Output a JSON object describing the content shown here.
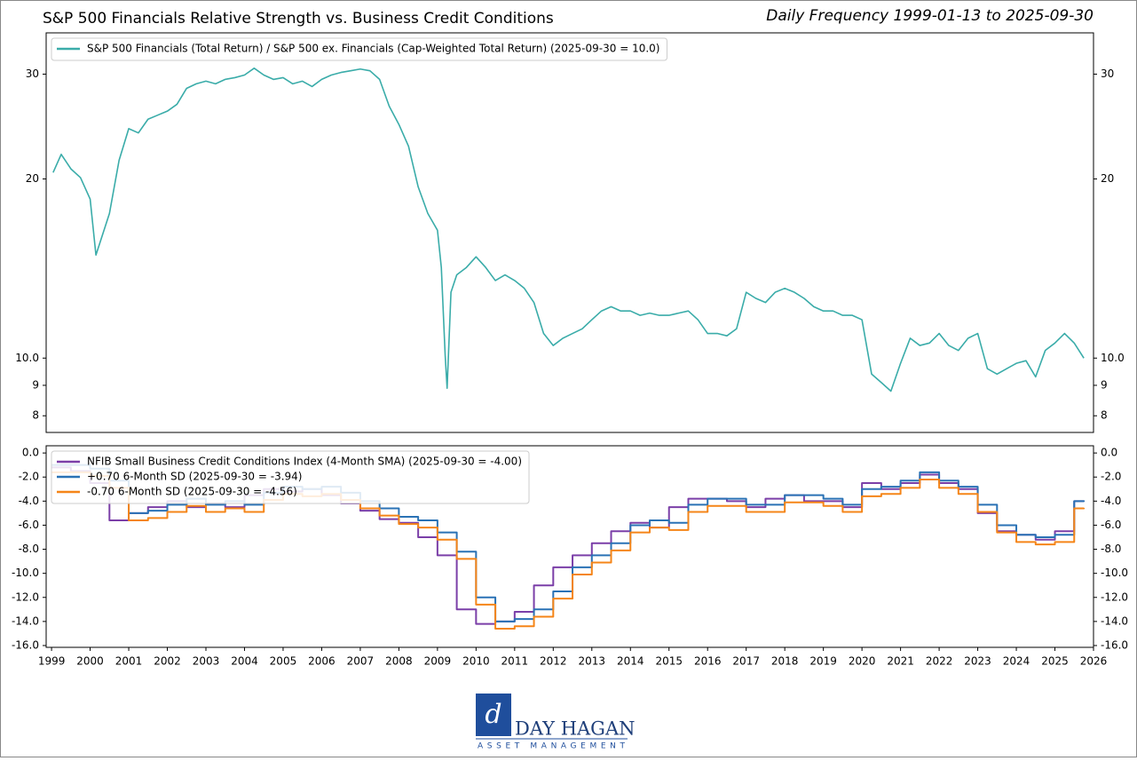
{
  "chart_data": [
    {
      "type": "line",
      "title": "S&P 500 Financials Relative Strength vs. Business Credit Conditions",
      "subtitle": "Daily Frequency 1999-01-13 to 2025-09-30",
      "log_y": true,
      "legend": "upper left",
      "xlim": [
        1998.86,
        2026.0
      ],
      "ylim": [
        7.5,
        35.2
      ],
      "yticks": [
        8,
        9,
        {
          "value": 10,
          "label": "10.0"
        },
        20,
        30
      ],
      "x": [
        1999.04,
        1999.25,
        1999.5,
        1999.75,
        2000.0,
        2000.15,
        2000.5,
        2000.75,
        2001.0,
        2001.25,
        2001.5,
        2001.75,
        2002.0,
        2002.25,
        2002.5,
        2002.75,
        2003.0,
        2003.25,
        2003.5,
        2003.75,
        2004.0,
        2004.25,
        2004.5,
        2004.75,
        2005.0,
        2005.25,
        2005.5,
        2005.75,
        2006.0,
        2006.25,
        2006.5,
        2006.75,
        2007.0,
        2007.25,
        2007.5,
        2007.75,
        2008.0,
        2008.25,
        2008.5,
        2008.75,
        2009.0,
        2009.1,
        2009.2,
        2009.25,
        2009.35,
        2009.5,
        2009.75,
        2010.0,
        2010.25,
        2010.5,
        2010.75,
        2011.0,
        2011.25,
        2011.5,
        2011.75,
        2012.0,
        2012.25,
        2012.5,
        2012.75,
        2013.0,
        2013.25,
        2013.5,
        2013.75,
        2014.0,
        2014.25,
        2014.5,
        2014.75,
        2015.0,
        2015.25,
        2015.5,
        2015.75,
        2016.0,
        2016.25,
        2016.5,
        2016.75,
        2017.0,
        2017.25,
        2017.5,
        2017.75,
        2018.0,
        2018.25,
        2018.5,
        2018.75,
        2019.0,
        2019.25,
        2019.5,
        2019.75,
        2020.0,
        2020.25,
        2020.5,
        2020.75,
        2021.0,
        2021.25,
        2021.5,
        2021.75,
        2022.0,
        2022.25,
        2022.5,
        2022.75,
        2023.0,
        2023.25,
        2023.5,
        2023.75,
        2024.0,
        2024.25,
        2024.5,
        2024.75,
        2025.0,
        2025.25,
        2025.5,
        2025.75
      ],
      "series": [
        {
          "name": "S&P 500 Financials (Total Return) / S&P 500 ex. Financials (Cap-Weighted Total Return) (2025-09-30 = 10.0)",
          "color": "#3aaca9",
          "values": [
            20.5,
            22.0,
            20.8,
            20.1,
            18.5,
            14.9,
            17.5,
            21.5,
            24.3,
            23.9,
            25.2,
            25.6,
            26.0,
            26.7,
            28.4,
            28.9,
            29.2,
            28.9,
            29.4,
            29.6,
            29.9,
            30.7,
            29.9,
            29.4,
            29.6,
            28.9,
            29.2,
            28.6,
            29.4,
            29.9,
            30.2,
            30.4,
            30.6,
            30.4,
            29.4,
            26.5,
            24.7,
            22.7,
            19.4,
            17.5,
            16.4,
            14.2,
            10.1,
            8.9,
            12.9,
            13.8,
            14.2,
            14.8,
            14.2,
            13.5,
            13.8,
            13.5,
            13.1,
            12.4,
            11.0,
            10.5,
            10.8,
            11.0,
            11.2,
            11.6,
            12.0,
            12.2,
            12.0,
            12.0,
            11.8,
            11.9,
            11.8,
            11.8,
            11.9,
            12.0,
            11.6,
            11.0,
            11.0,
            10.9,
            11.2,
            12.9,
            12.6,
            12.4,
            12.9,
            13.1,
            12.9,
            12.6,
            12.2,
            12.0,
            12.0,
            11.8,
            11.8,
            11.6,
            9.4,
            9.1,
            8.8,
            9.8,
            10.8,
            10.5,
            10.6,
            11.0,
            10.5,
            10.3,
            10.8,
            11.0,
            9.6,
            9.4,
            9.6,
            9.8,
            9.9,
            9.3,
            10.3,
            10.6,
            11.0,
            10.6,
            10.0
          ]
        }
      ]
    },
    {
      "type": "step",
      "legend": "upper left",
      "xlim": [
        1998.86,
        2026.0
      ],
      "xticks": [
        1999,
        2000,
        2001,
        2002,
        2003,
        2004,
        2005,
        2006,
        2007,
        2008,
        2009,
        2010,
        2011,
        2012,
        2013,
        2014,
        2015,
        2016,
        2017,
        2018,
        2019,
        2020,
        2021,
        2022,
        2023,
        2024,
        2025,
        2026
      ],
      "ylim": [
        -16.15,
        0.6
      ],
      "yticks": [
        {
          "value": 0,
          "label": "0.0"
        },
        {
          "value": -2,
          "label": "-2.0"
        },
        {
          "value": -4,
          "label": "-4.0"
        },
        {
          "value": -6,
          "label": "-6.0"
        },
        {
          "value": -8,
          "label": "-8.0"
        },
        {
          "value": -10,
          "label": "-10.0"
        },
        {
          "value": -12,
          "label": "-12.0"
        },
        {
          "value": -14,
          "label": "-14.0"
        },
        {
          "value": -16,
          "label": "-16.0"
        }
      ],
      "x": [
        1999.0,
        1999.5,
        2000.0,
        2000.5,
        2001.0,
        2001.5,
        2002.0,
        2002.5,
        2003.0,
        2003.5,
        2004.0,
        2004.5,
        2005.0,
        2005.5,
        2006.0,
        2006.5,
        2007.0,
        2007.5,
        2008.0,
        2008.5,
        2009.0,
        2009.5,
        2010.0,
        2010.5,
        2011.0,
        2011.5,
        2012.0,
        2012.5,
        2013.0,
        2013.5,
        2014.0,
        2014.5,
        2015.0,
        2015.5,
        2016.0,
        2016.5,
        2017.0,
        2017.5,
        2018.0,
        2018.5,
        2019.0,
        2019.5,
        2020.0,
        2020.5,
        2021.0,
        2021.5,
        2022.0,
        2022.5,
        2023.0,
        2023.5,
        2024.0,
        2024.5,
        2025.0,
        2025.5,
        2025.75
      ],
      "series": [
        {
          "name": "NFIB Small Business Credit Conditions Index (4-Month SMA) (2025-09-30 = -4.00)",
          "color": "#7b3fa8",
          "values": [
            -1.2,
            -1.5,
            -2.5,
            -5.6,
            -5.0,
            -4.5,
            -4.0,
            -4.5,
            -4.2,
            -4.5,
            -3.5,
            -3.0,
            -3.2,
            -3.0,
            -3.5,
            -4.2,
            -4.8,
            -5.5,
            -5.8,
            -7.0,
            -8.5,
            -13.0,
            -14.2,
            -14.0,
            -13.2,
            -11.0,
            -9.5,
            -8.5,
            -7.5,
            -6.5,
            -5.8,
            -6.2,
            -4.5,
            -3.8,
            -3.8,
            -4.0,
            -4.5,
            -3.8,
            -3.5,
            -4.0,
            -4.0,
            -4.5,
            -2.5,
            -3.0,
            -2.5,
            -1.8,
            -2.5,
            -3.0,
            -5.0,
            -6.5,
            -6.8,
            -7.2,
            -6.5,
            -4.0,
            -4.0
          ]
        },
        {
          "name": "+0.70 6-Month SD (2025-09-30 = -3.94)",
          "color": "#2a72b5",
          "values": [
            -1.0,
            -1.0,
            -1.3,
            -2.3,
            -5.0,
            -4.8,
            -4.3,
            -3.8,
            -4.3,
            -4.0,
            -4.3,
            -3.3,
            -2.8,
            -3.0,
            -2.8,
            -3.3,
            -4.0,
            -4.6,
            -5.3,
            -5.6,
            -6.6,
            -8.2,
            -12.0,
            -14.0,
            -13.8,
            -13.0,
            -11.5,
            -9.5,
            -8.5,
            -7.5,
            -6.0,
            -5.6,
            -5.8,
            -4.3,
            -3.8,
            -3.8,
            -4.3,
            -4.3,
            -3.5,
            -3.5,
            -3.8,
            -4.3,
            -3.0,
            -2.8,
            -2.3,
            -1.6,
            -2.3,
            -2.8,
            -4.3,
            -6.0,
            -6.8,
            -7.0,
            -6.8,
            -4.0,
            -3.94
          ]
        },
        {
          "name": "-0.70 6-Month SD (2025-09-30 = -4.56)",
          "color": "#f58518",
          "values": [
            -1.6,
            -1.6,
            -1.9,
            -2.9,
            -5.6,
            -5.4,
            -4.9,
            -4.4,
            -4.9,
            -4.6,
            -4.9,
            -3.9,
            -3.4,
            -3.6,
            -3.4,
            -3.9,
            -4.6,
            -5.2,
            -5.9,
            -6.2,
            -7.2,
            -8.8,
            -12.6,
            -14.6,
            -14.4,
            -13.6,
            -12.1,
            -10.1,
            -9.1,
            -8.1,
            -6.6,
            -6.2,
            -6.4,
            -4.9,
            -4.4,
            -4.4,
            -4.9,
            -4.9,
            -4.1,
            -4.1,
            -4.4,
            -4.9,
            -3.6,
            -3.4,
            -2.9,
            -2.2,
            -2.9,
            -3.4,
            -4.9,
            -6.6,
            -7.4,
            -7.6,
            -7.4,
            -4.6,
            -4.56
          ]
        }
      ]
    }
  ],
  "logo": {
    "name": "DAY HAGAN",
    "tagline": "ASSET MANAGEMENT"
  }
}
